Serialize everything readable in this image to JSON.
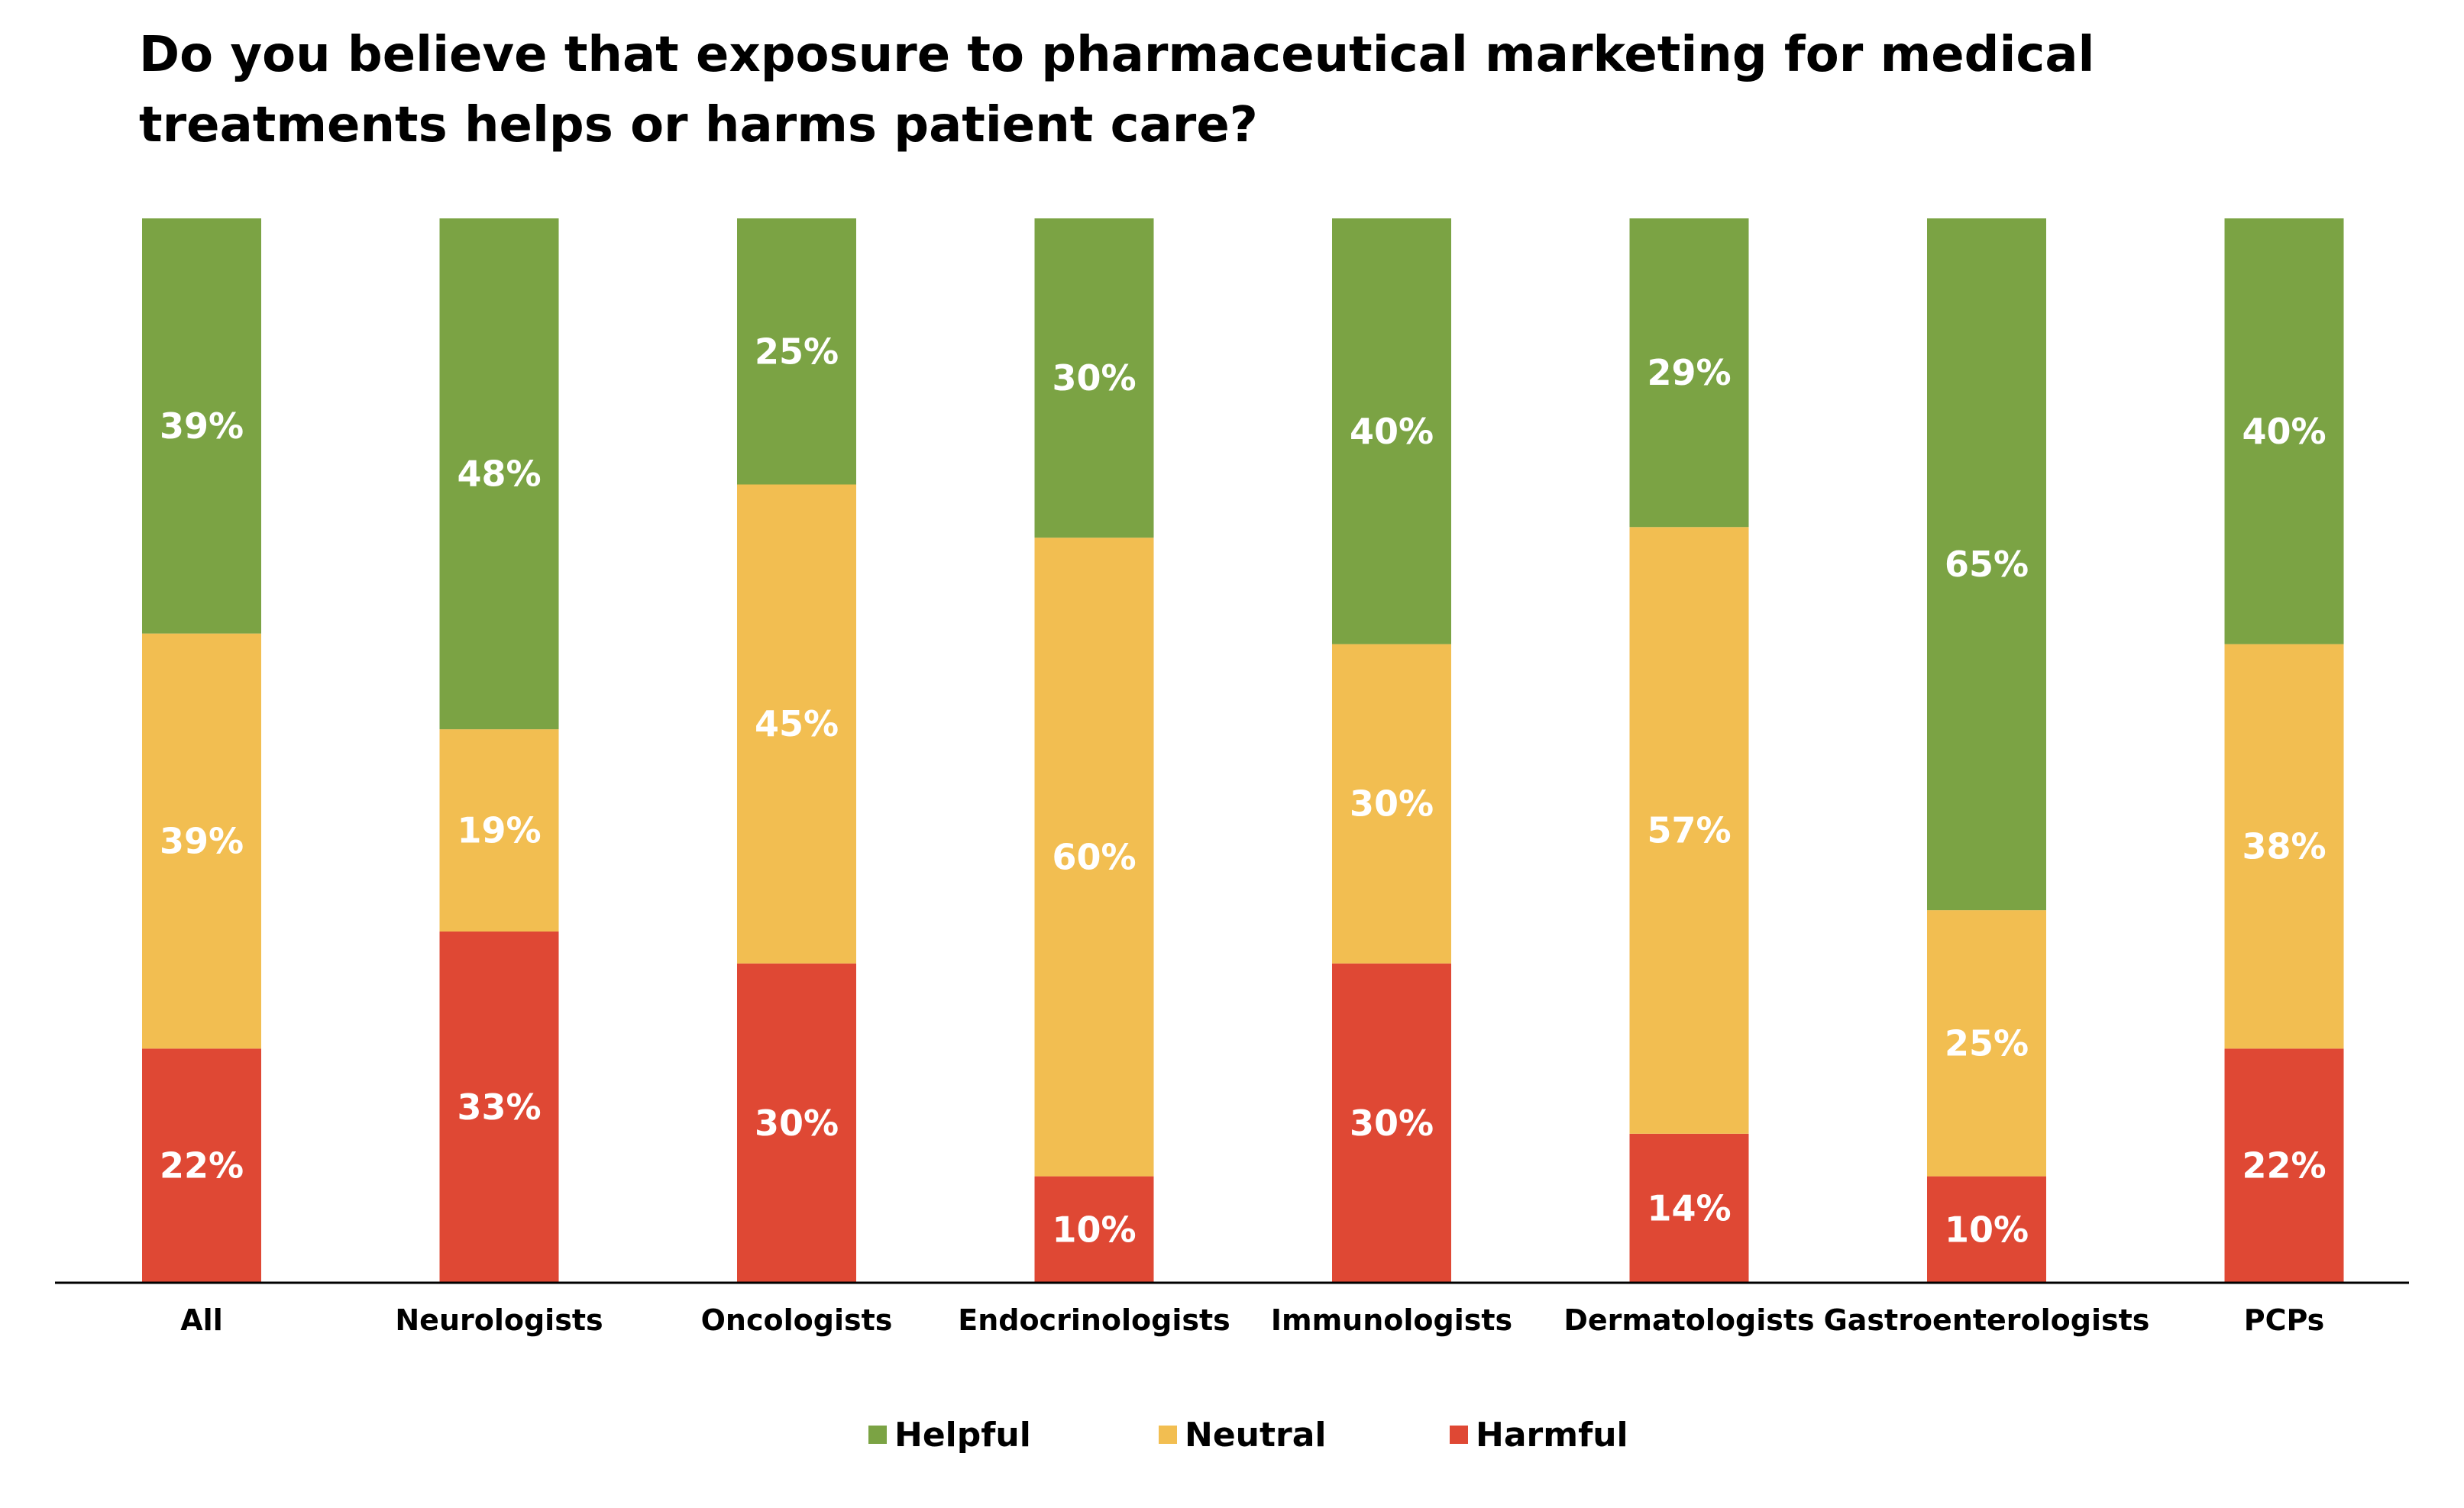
{
  "chart_data": {
    "type": "bar",
    "stacked": true,
    "title": "Do you believe that exposure to pharmaceutical marketing for medical treatments helps or harms patient care?",
    "categories": [
      "All",
      "Neurologists",
      "Oncologists",
      "Endocrinologists",
      "Immunologists",
      "Dermatologists",
      "Gastroenterologists",
      "PCPs"
    ],
    "series": [
      {
        "name": "Harmful",
        "color": "#DF4834",
        "values": [
          22,
          33,
          30,
          10,
          30,
          14,
          10,
          22
        ],
        "labels": [
          "22%",
          "33%",
          "30%",
          "10%",
          "30%",
          "14%",
          "10%",
          "22%"
        ]
      },
      {
        "name": "Neutral",
        "color": "#F2BE51",
        "values": [
          39,
          19,
          45,
          60,
          30,
          57,
          25,
          38
        ],
        "labels": [
          "39%",
          "19%",
          "45%",
          "60%",
          "30%",
          "57%",
          "25%",
          "38%"
        ]
      },
      {
        "name": "Helpful",
        "color": "#7BA344",
        "values": [
          39,
          48,
          25,
          30,
          40,
          29,
          65,
          40
        ],
        "labels": [
          "39%",
          "48%",
          "25%",
          "30%",
          "40%",
          "29%",
          "65%",
          "40%"
        ]
      }
    ],
    "legend": {
      "position": "bottom",
      "order": [
        "Helpful",
        "Neutral",
        "Harmful"
      ]
    },
    "ylim": [
      0,
      100
    ],
    "grid": false
  }
}
